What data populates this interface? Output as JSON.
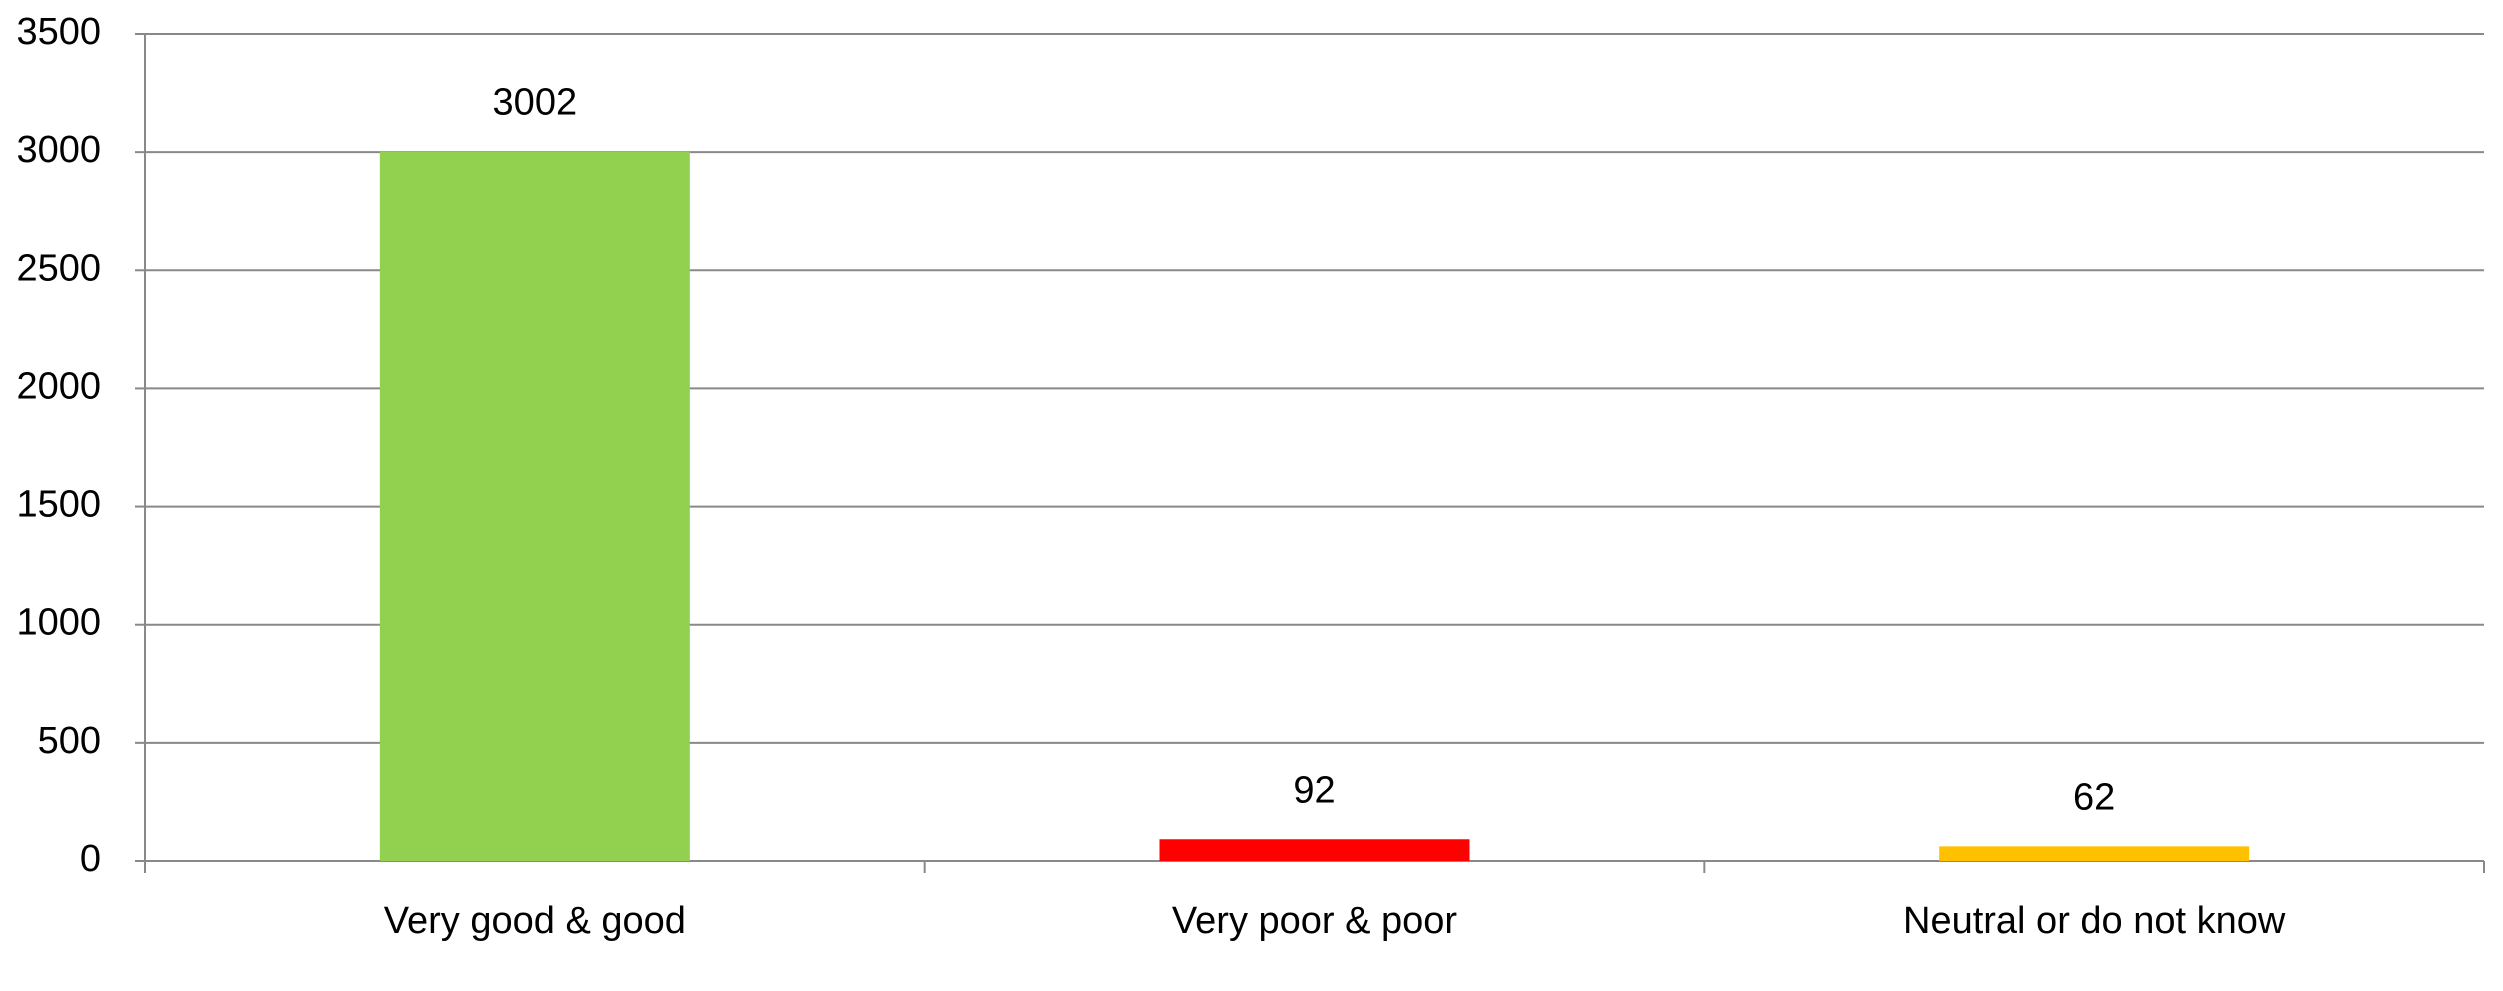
{
  "chart_data": {
    "type": "bar",
    "categories": [
      "Very good & good",
      "Very poor & poor",
      "Neutral or do not know"
    ],
    "values": [
      3002,
      92,
      62
    ],
    "colors": [
      "#92d050",
      "#ff0000",
      "#ffc000"
    ],
    "ylim": [
      0,
      3500
    ],
    "yticks": [
      0,
      500,
      1000,
      1500,
      2000,
      2500,
      3000,
      3500
    ],
    "grid": true
  }
}
